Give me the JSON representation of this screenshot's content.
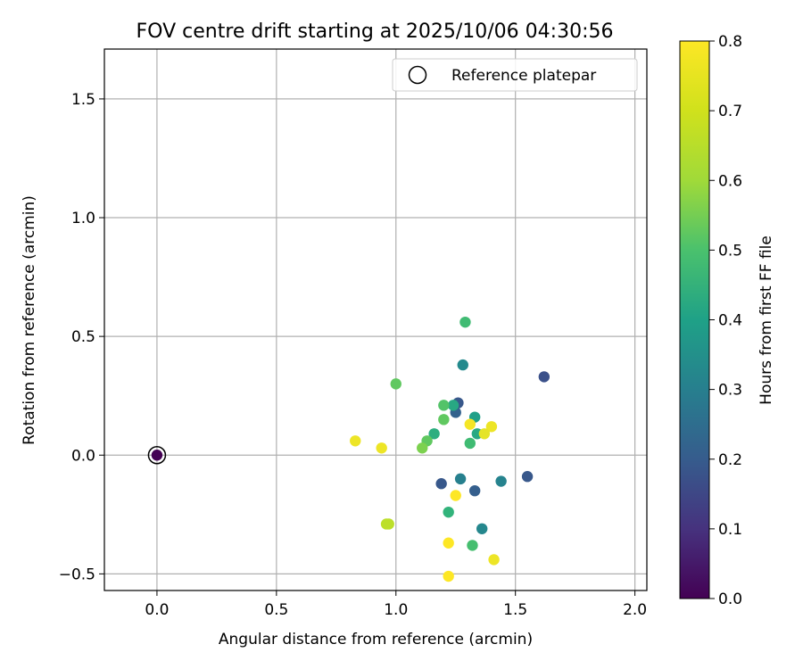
{
  "chart_data": {
    "type": "scatter",
    "title": "FOV centre drift starting at 2025/10/06 04:30:56",
    "xlabel": "Angular distance from reference (arcmin)",
    "ylabel": "Rotation from reference (arcmin)",
    "xlim": [
      -0.22,
      2.05
    ],
    "ylim": [
      -0.57,
      1.71
    ],
    "x_ticks": [
      0.0,
      0.5,
      1.0,
      1.5,
      2.0
    ],
    "x_tick_labels": [
      "0.0",
      "0.5",
      "1.0",
      "1.5",
      "2.0"
    ],
    "y_ticks": [
      -0.5,
      0.0,
      0.5,
      1.0,
      1.5
    ],
    "y_tick_labels": [
      "−0.5",
      "0.0",
      "0.5",
      "1.0",
      "1.5"
    ],
    "grid": true,
    "legend": {
      "position": "top-right",
      "label": "Reference platepar"
    },
    "reference": {
      "x": 0.0,
      "y": 0.0,
      "hours": 0.0
    },
    "colorbar": {
      "label": "Hours from first FF file",
      "range": [
        0.0,
        0.8
      ],
      "ticks": [
        0.0,
        0.1,
        0.2,
        0.3,
        0.4,
        0.5,
        0.6,
        0.7,
        0.8
      ],
      "tick_labels": [
        "0.0",
        "0.1",
        "0.2",
        "0.3",
        "0.4",
        "0.5",
        "0.6",
        "0.7",
        "0.8"
      ],
      "colormap": "viridis"
    },
    "points": [
      {
        "x": 1.62,
        "y": 0.33,
        "hours": 0.2
      },
      {
        "x": 1.26,
        "y": 0.22,
        "hours": 0.22
      },
      {
        "x": 1.25,
        "y": 0.18,
        "hours": 0.25
      },
      {
        "x": 1.55,
        "y": -0.09,
        "hours": 0.22
      },
      {
        "x": 1.19,
        "y": -0.12,
        "hours": 0.22
      },
      {
        "x": 1.33,
        "y": -0.15,
        "hours": 0.24
      },
      {
        "x": 1.28,
        "y": 0.38,
        "hours": 0.38
      },
      {
        "x": 1.27,
        "y": -0.1,
        "hours": 0.35
      },
      {
        "x": 1.44,
        "y": -0.11,
        "hours": 0.36
      },
      {
        "x": 1.36,
        "y": -0.31,
        "hours": 0.37
      },
      {
        "x": 1.24,
        "y": 0.21,
        "hours": 0.48
      },
      {
        "x": 1.33,
        "y": 0.16,
        "hours": 0.45
      },
      {
        "x": 1.34,
        "y": 0.09,
        "hours": 0.48
      },
      {
        "x": 1.16,
        "y": 0.09,
        "hours": 0.5
      },
      {
        "x": 1.22,
        "y": -0.24,
        "hours": 0.52
      },
      {
        "x": 1.29,
        "y": 0.56,
        "hours": 0.55
      },
      {
        "x": 1.2,
        "y": 0.21,
        "hours": 0.58
      },
      {
        "x": 1.31,
        "y": 0.05,
        "hours": 0.55
      },
      {
        "x": 1.2,
        "y": 0.15,
        "hours": 0.6
      },
      {
        "x": 1.13,
        "y": 0.06,
        "hours": 0.6
      },
      {
        "x": 1.32,
        "y": -0.38,
        "hours": 0.56
      },
      {
        "x": 1.0,
        "y": 0.3,
        "hours": 0.6
      },
      {
        "x": 1.11,
        "y": 0.03,
        "hours": 0.64
      },
      {
        "x": 0.97,
        "y": -0.29,
        "hours": 0.72
      },
      {
        "x": 0.96,
        "y": -0.29,
        "hours": 0.72
      },
      {
        "x": 0.83,
        "y": 0.06,
        "hours": 0.78
      },
      {
        "x": 0.94,
        "y": 0.03,
        "hours": 0.78
      },
      {
        "x": 1.31,
        "y": 0.13,
        "hours": 0.79
      },
      {
        "x": 1.4,
        "y": 0.12,
        "hours": 0.78
      },
      {
        "x": 1.37,
        "y": 0.09,
        "hours": 0.77
      },
      {
        "x": 1.25,
        "y": -0.17,
        "hours": 0.8
      },
      {
        "x": 1.22,
        "y": -0.37,
        "hours": 0.8
      },
      {
        "x": 1.41,
        "y": -0.44,
        "hours": 0.78
      },
      {
        "x": 1.22,
        "y": -0.51,
        "hours": 0.8
      }
    ]
  }
}
